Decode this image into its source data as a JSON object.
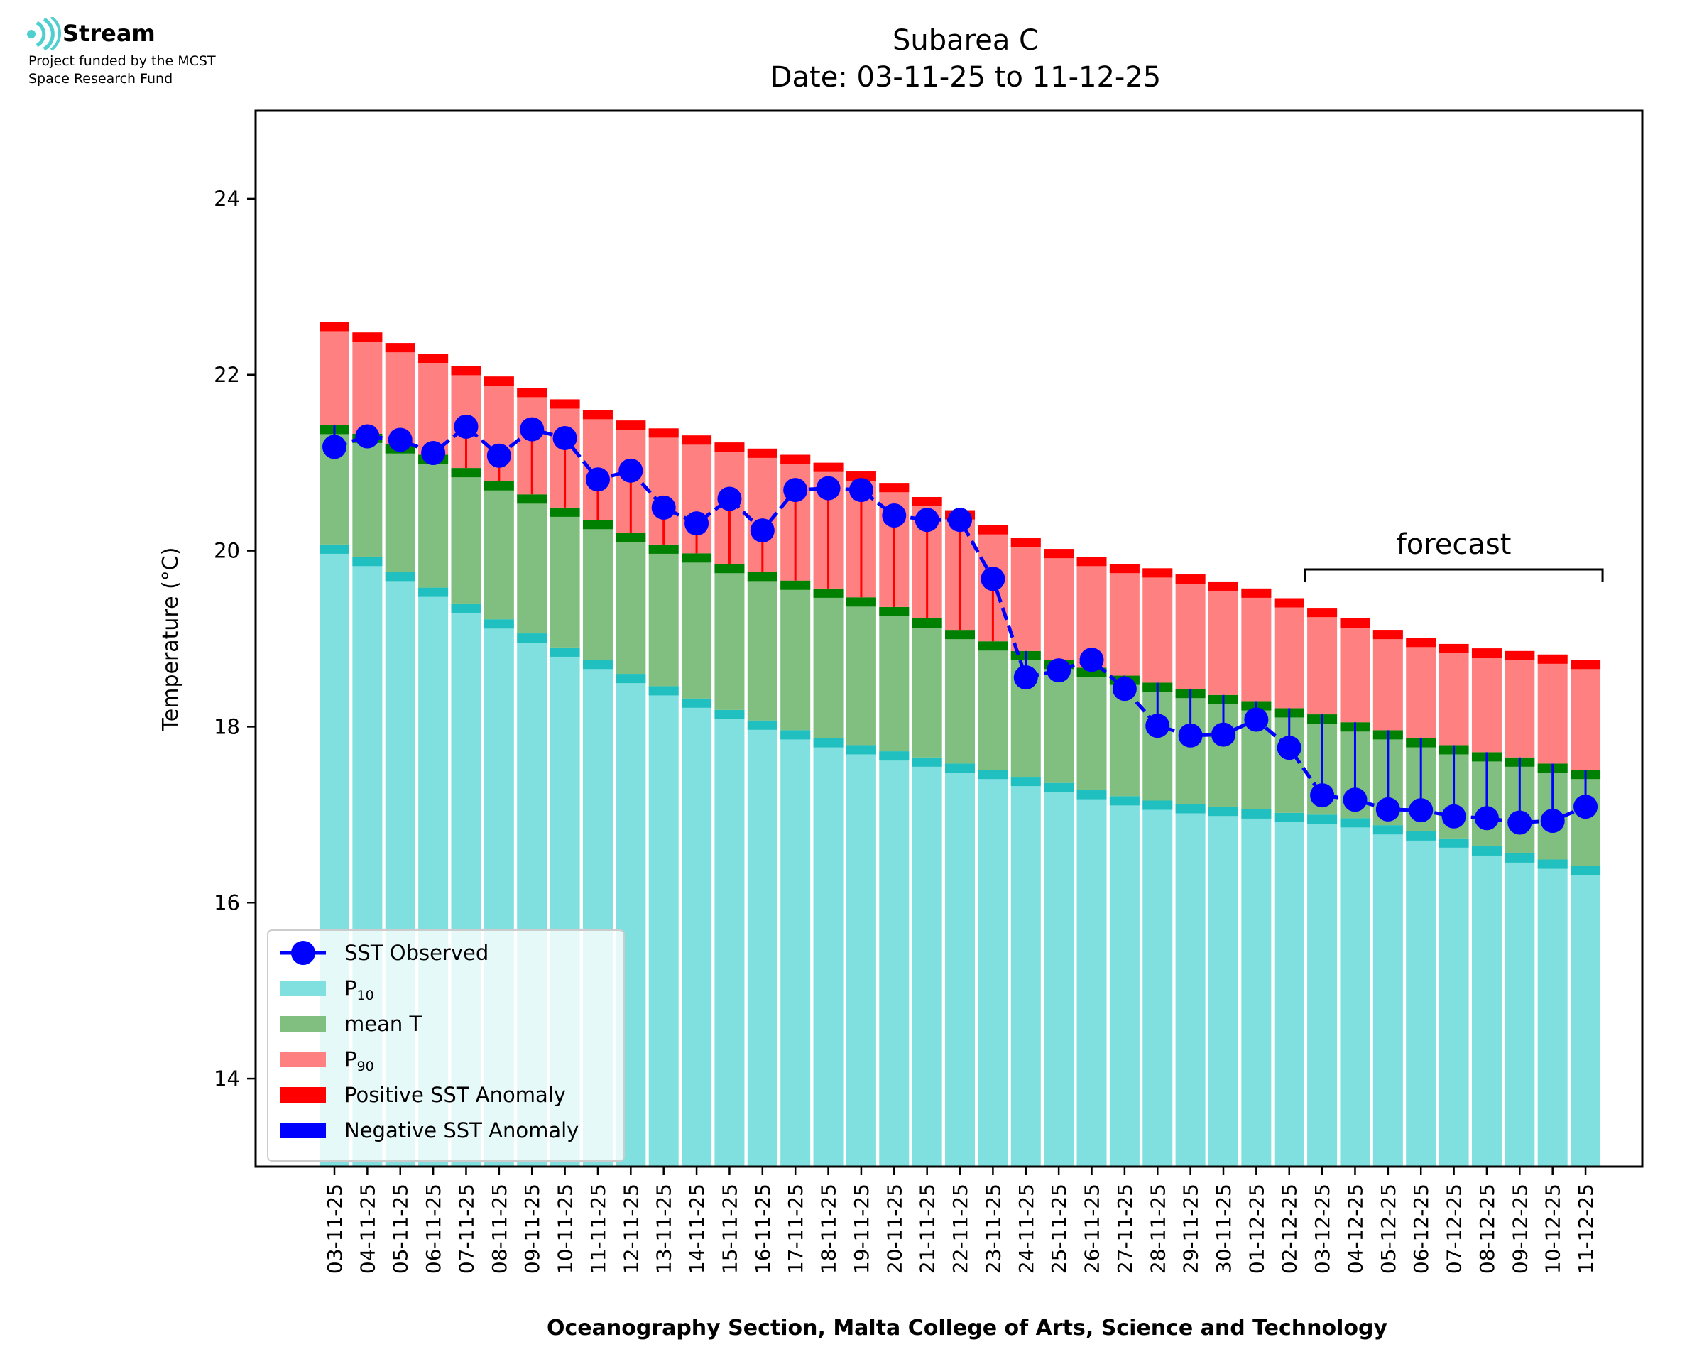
{
  "logo": {
    "name": "Stream",
    "line1": "Project funded by the MCST",
    "line2": "Space Research Fund"
  },
  "chart_data": {
    "type": "bar",
    "title": "Subarea C",
    "subtitle": "Date: 03-11-25 to 11-12-25",
    "ylabel": "Temperature (°C)",
    "xlabel": "Oceanography Section, Malta College of Arts, Science and Technology",
    "ylim": [
      13,
      25
    ],
    "yticks": [
      14,
      16,
      18,
      20,
      22,
      24
    ],
    "grid": false,
    "legend_position": "lower-left",
    "categories": [
      "03-11-25",
      "04-11-25",
      "05-11-25",
      "06-11-25",
      "07-11-25",
      "08-11-25",
      "09-11-25",
      "10-11-25",
      "11-11-25",
      "12-11-25",
      "13-11-25",
      "14-11-25",
      "15-11-25",
      "16-11-25",
      "17-11-25",
      "18-11-25",
      "19-11-25",
      "20-11-25",
      "21-11-25",
      "22-11-25",
      "23-11-25",
      "24-11-25",
      "25-11-25",
      "26-11-25",
      "27-11-25",
      "28-11-25",
      "29-11-25",
      "30-11-25",
      "01-12-25",
      "02-12-25",
      "03-12-25",
      "04-12-25",
      "05-12-25",
      "06-12-25",
      "07-12-25",
      "08-12-25",
      "09-12-25",
      "10-12-25",
      "11-12-25"
    ],
    "series": [
      {
        "name": "P10",
        "legend_label": "P",
        "legend_sub": "10",
        "color": "#80dfdf",
        "edge_color": "#20c0c0",
        "values": [
          20.07,
          19.93,
          19.76,
          19.58,
          19.4,
          19.22,
          19.06,
          18.9,
          18.76,
          18.6,
          18.46,
          18.32,
          18.19,
          18.07,
          17.96,
          17.87,
          17.79,
          17.72,
          17.65,
          17.58,
          17.51,
          17.43,
          17.36,
          17.28,
          17.21,
          17.16,
          17.12,
          17.09,
          17.06,
          17.02,
          17.0,
          16.96,
          16.88,
          16.81,
          16.73,
          16.64,
          16.56,
          16.49,
          16.42
        ]
      },
      {
        "name": "mean T",
        "legend_label": "mean T",
        "color": "#80bf80",
        "edge_color": "#008000",
        "values": [
          21.43,
          21.33,
          21.21,
          21.09,
          20.94,
          20.79,
          20.64,
          20.49,
          20.35,
          20.2,
          20.07,
          19.97,
          19.85,
          19.76,
          19.66,
          19.57,
          19.47,
          19.36,
          19.23,
          19.1,
          18.97,
          18.86,
          18.76,
          18.67,
          18.58,
          18.5,
          18.43,
          18.36,
          18.29,
          18.21,
          18.14,
          18.05,
          17.96,
          17.87,
          17.79,
          17.71,
          17.65,
          17.58,
          17.51
        ]
      },
      {
        "name": "P90",
        "legend_label": "P",
        "legend_sub": "90",
        "color": "#ff8080",
        "edge_color": "#ff0000",
        "values": [
          22.6,
          22.48,
          22.36,
          22.24,
          22.1,
          21.98,
          21.85,
          21.72,
          21.6,
          21.48,
          21.39,
          21.31,
          21.23,
          21.16,
          21.09,
          21.0,
          20.9,
          20.77,
          20.61,
          20.46,
          20.29,
          20.15,
          20.02,
          19.93,
          19.85,
          19.8,
          19.73,
          19.65,
          19.57,
          19.46,
          19.35,
          19.23,
          19.1,
          19.01,
          18.94,
          18.89,
          18.86,
          18.82,
          18.76
        ]
      },
      {
        "name": "SST Observed",
        "legend_label": "SST Observed",
        "color": "#0000ff",
        "values": [
          21.18,
          21.3,
          21.26,
          21.11,
          21.41,
          21.08,
          21.38,
          21.28,
          20.81,
          20.91,
          20.49,
          20.31,
          20.59,
          20.23,
          20.69,
          20.71,
          20.69,
          20.4,
          20.35,
          20.35,
          19.68,
          18.56,
          18.64,
          18.76,
          18.43,
          18.01,
          17.9,
          17.91,
          18.08,
          17.76,
          17.22,
          17.17,
          17.06,
          17.05,
          16.98,
          16.96,
          16.91,
          16.93,
          17.09
        ]
      }
    ],
    "anomaly_legend": [
      {
        "label": "Positive SST Anomaly",
        "color": "#ff0000"
      },
      {
        "label": "Negative SST Anomaly",
        "color": "#0000ff"
      }
    ],
    "forecast": {
      "label": "forecast",
      "start": "03-12-25",
      "end": "11-12-25"
    }
  }
}
